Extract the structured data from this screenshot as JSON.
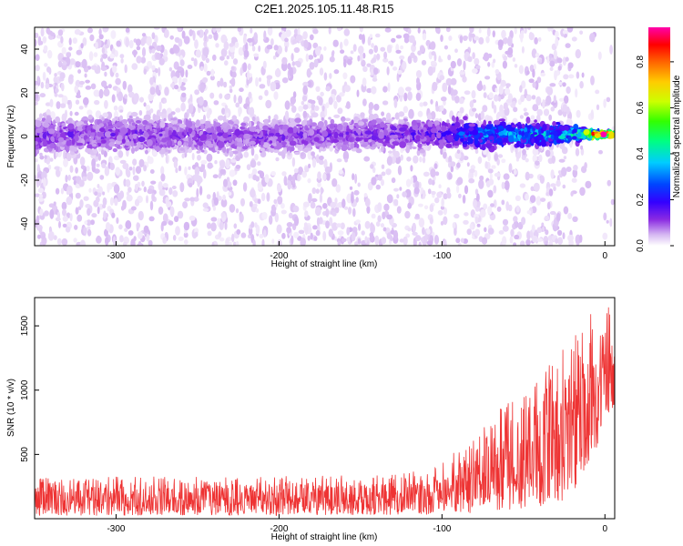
{
  "title": "C2E1.2025.105.11.48.R15",
  "chart_data": [
    {
      "type": "heatmap",
      "xlabel": "Height of straight line (km)",
      "ylabel": "Frequency (Hz)",
      "xlim": [
        -350,
        6
      ],
      "ylim": [
        -50,
        50
      ],
      "xticks": [
        -300,
        -200,
        -100,
        0
      ],
      "yticks": [
        -40,
        -20,
        0,
        20,
        40
      ],
      "colorbar": {
        "label": "Normalized spectral amplitude",
        "range": [
          0,
          0.95
        ],
        "ticks": [
          0.0,
          0.2,
          0.4,
          0.6,
          0.8
        ],
        "colormap": [
          "#ffffff",
          "#d6b8f2",
          "#8a2be2",
          "#3300ff",
          "#0044ff",
          "#00ccff",
          "#00ff80",
          "#33ff00",
          "#ccff00",
          "#ffcc00",
          "#ff6600",
          "#ff0000",
          "#ff00aa"
        ]
      },
      "band_profile": [
        {
          "x": -350,
          "center_hz": 0,
          "halfwidth_hz": 8,
          "peak_amp": 0.18
        },
        {
          "x": -300,
          "center_hz": 1,
          "halfwidth_hz": 8,
          "peak_amp": 0.17
        },
        {
          "x": -250,
          "center_hz": 0,
          "halfwidth_hz": 7,
          "peak_amp": 0.17
        },
        {
          "x": -200,
          "center_hz": 0,
          "halfwidth_hz": 7,
          "peak_amp": 0.17
        },
        {
          "x": -150,
          "center_hz": 1,
          "halfwidth_hz": 7,
          "peak_amp": 0.17
        },
        {
          "x": -100,
          "center_hz": 1,
          "halfwidth_hz": 6,
          "peak_amp": 0.22
        },
        {
          "x": -80,
          "center_hz": 1,
          "halfwidth_hz": 6,
          "peak_amp": 0.35
        },
        {
          "x": -50,
          "center_hz": 1,
          "halfwidth_hz": 5,
          "peak_amp": 0.4
        },
        {
          "x": -20,
          "center_hz": 1,
          "halfwidth_hz": 4,
          "peak_amp": 0.45
        },
        {
          "x": -10,
          "center_hz": 1,
          "halfwidth_hz": 2,
          "peak_amp": 0.75
        },
        {
          "x": 0,
          "center_hz": 1,
          "halfwidth_hz": 1,
          "peak_amp": 0.9
        },
        {
          "x": 6,
          "center_hz": 1,
          "halfwidth_hz": 1,
          "peak_amp": 0.8
        }
      ]
    },
    {
      "type": "line",
      "xlabel": "Height of straight line (km)",
      "ylabel": "SNR (10 * v/v)",
      "xlim": [
        -350,
        6
      ],
      "ylim": [
        0,
        1720
      ],
      "xticks": [
        -300,
        -200,
        -100,
        0
      ],
      "yticks": [
        500,
        1000,
        1500
      ],
      "color": "#ee3333",
      "envelope": [
        {
          "x": -350,
          "low": 20,
          "high": 320
        },
        {
          "x": -300,
          "low": 25,
          "high": 330
        },
        {
          "x": -250,
          "low": 25,
          "high": 330
        },
        {
          "x": -200,
          "low": 25,
          "high": 330
        },
        {
          "x": -150,
          "low": 30,
          "high": 340
        },
        {
          "x": -110,
          "low": 30,
          "high": 380
        },
        {
          "x": -95,
          "low": 40,
          "high": 500
        },
        {
          "x": -80,
          "low": 40,
          "high": 650
        },
        {
          "x": -65,
          "low": 60,
          "high": 900
        },
        {
          "x": -50,
          "low": 80,
          "high": 1000
        },
        {
          "x": -35,
          "low": 100,
          "high": 1200
        },
        {
          "x": -20,
          "low": 150,
          "high": 1450
        },
        {
          "x": -10,
          "low": 400,
          "high": 1650
        },
        {
          "x": 0,
          "low": 700,
          "high": 1680
        },
        {
          "x": 6,
          "low": 800,
          "high": 1600
        }
      ]
    }
  ]
}
